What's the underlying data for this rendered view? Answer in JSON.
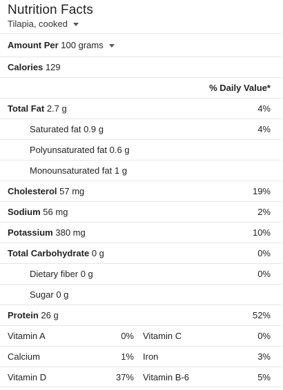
{
  "header": {
    "title": "Nutrition Facts",
    "food": "Tilapia, cooked"
  },
  "amount": {
    "label": "Amount Per",
    "value": "100 grams"
  },
  "calories": {
    "label": "Calories",
    "value": "129"
  },
  "dv_header": "% Daily Value*",
  "nutrients": [
    {
      "label": "Total Fat",
      "value": "2.7 g",
      "pct": "4%"
    },
    {
      "label": "Saturated fat",
      "value": "0.9 g",
      "pct": "4%"
    },
    {
      "label": "Polyunsaturated fat",
      "value": "0.6 g",
      "pct": ""
    },
    {
      "label": "Monounsaturated fat",
      "value": "1 g",
      "pct": ""
    },
    {
      "label": "Cholesterol",
      "value": "57 mg",
      "pct": "19%"
    },
    {
      "label": "Sodium",
      "value": "56 mg",
      "pct": "2%"
    },
    {
      "label": "Potassium",
      "value": "380 mg",
      "pct": "10%"
    },
    {
      "label": "Total Carbohydrate",
      "value": "0 g",
      "pct": "0%"
    },
    {
      "label": "Dietary fiber",
      "value": "0 g",
      "pct": "0%"
    },
    {
      "label": "Sugar",
      "value": "0 g",
      "pct": ""
    },
    {
      "label": "Protein",
      "value": "26 g",
      "pct": "52%"
    }
  ],
  "vitamins": [
    {
      "left_label": "Vitamin A",
      "left_value": "0%",
      "right_label": "Vitamin C",
      "right_value": "0%"
    },
    {
      "left_label": "Calcium",
      "left_value": "1%",
      "right_label": "Iron",
      "right_value": "3%"
    },
    {
      "left_label": "Vitamin D",
      "left_value": "37%",
      "right_label": "Vitamin B-6",
      "right_value": "5%"
    }
  ],
  "icons": {
    "food_dropdown": "caret-down-icon",
    "amount_dropdown": "caret-down-icon"
  }
}
